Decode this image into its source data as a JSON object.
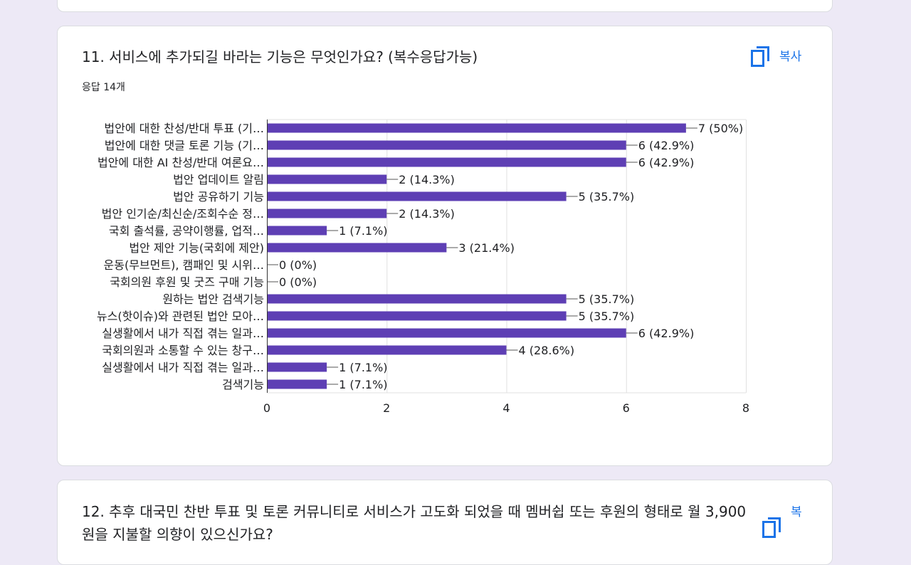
{
  "q11": {
    "title": "11. 서비스에 추가되길 바라는 기능은 무엇인가요? (복수응답가능)",
    "responses": "응답 14개",
    "copy_label": "복사"
  },
  "q12": {
    "title": "12. 추후 대국민 찬반 투표 및 토론 커뮤니티로 서비스가 고도화 되었을 때 멤버쉽 또는 후원의 형태로 월 3,900원을 지불할 의향이 있으신가요?",
    "copy_label": "복"
  },
  "colors": {
    "bar": "#5e3fb4",
    "grid": "#e0e0e0",
    "accent": "#1a73e8",
    "background": "#ede9f6"
  },
  "chart_data": {
    "type": "bar",
    "orientation": "horizontal",
    "xlim": [
      0,
      8
    ],
    "xticks": [
      "0",
      "2",
      "4",
      "6",
      "8"
    ],
    "categories": [
      "법안에 대한 찬성/반대 투표 (기…",
      "법안에 대한 댓글 토론 기능 (기…",
      "법안에 대한 AI 찬성/반대 여론요…",
      "법안 업데이트 알림",
      "법안 공유하기 기능",
      "법안 인기순/최신순/조회수순 정…",
      "국회 출석률, 공약이행률, 업적…",
      "법안 제안 기능(국회에 제안)",
      "운동(무브먼트), 캠패인 및 시위…",
      "국회의원 후원 및 굿즈 구매 기능",
      "원하는 법안 검색기능",
      "뉴스(핫이슈)와 관련된 법안 모아…",
      "실생활에서 내가 직접 겪는 일과…",
      "국회의원과 소통할 수 있는 창구…",
      "실생활에서 내가 직접 겪는 일과…",
      "검색기능"
    ],
    "values": [
      7,
      6,
      6,
      2,
      5,
      2,
      1,
      3,
      0,
      0,
      5,
      5,
      6,
      4,
      1,
      1
    ],
    "data_labels": [
      "7 (50%)",
      "6 (42.9%)",
      "6 (42.9%)",
      "2 (14.3%)",
      "5 (35.7%)",
      "2 (14.3%)",
      "1 (7.1%)",
      "3 (21.4%)",
      "0 (0%)",
      "0 (0%)",
      "5 (35.7%)",
      "5 (35.7%)",
      "6 (42.9%)",
      "4 (28.6%)",
      "1 (7.1%)",
      "1 (7.1%)"
    ]
  }
}
